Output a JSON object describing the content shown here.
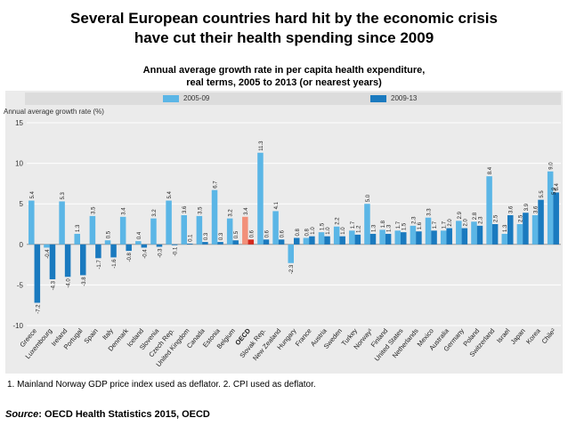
{
  "page": {
    "title_line1": "Several European countries hard hit by the economic crisis",
    "title_line2": "have cut their health spending since 2009",
    "footnote": "1. Mainland Norway GDP price index used as deflator. 2. CPI used as deflator.",
    "source_label": "Source",
    "source_text": ": OECD Health Statistics 2015, OECD"
  },
  "chart_data": {
    "type": "bar",
    "title": "Annual average growth rate in per capita health expenditure,",
    "subtitle": "real terms, 2005 to 2013 (or nearest years)",
    "ylabel": "Annual average growth rate (%)",
    "ylim": [
      -10,
      15
    ],
    "yticks": [
      -10,
      -5,
      0,
      5,
      10,
      15
    ],
    "grid": true,
    "legend_position": "top",
    "categories": [
      "Greece",
      "Luxembourg",
      "Ireland",
      "Portugal",
      "Spain",
      "Italy",
      "Denmark",
      "Iceland",
      "Slovenia",
      "Czech Rep.",
      "United Kingdom",
      "Canada",
      "Estonia",
      "Belgium",
      "OECD",
      "Slovak Rep.",
      "New Zealand",
      "Hungary",
      "France",
      "Austria",
      "Sweden",
      "Turkey",
      "Norway¹",
      "Finland",
      "United States",
      "Netherlands",
      "Mexico",
      "Australia",
      "Germany",
      "Poland",
      "Switzerland",
      "Israel",
      "Japan",
      "Korea",
      "Chile²"
    ],
    "series": [
      {
        "name": "2005-09",
        "color": "#5bb6e6",
        "values": [
          5.4,
          -0.4,
          5.3,
          1.3,
          3.5,
          0.5,
          3.4,
          0.4,
          3.2,
          5.4,
          3.6,
          3.5,
          6.7,
          3.2,
          3.4,
          11.3,
          4.1,
          -2.3,
          0.8,
          1.5,
          2.2,
          1.7,
          5.0,
          1.8,
          1.7,
          2.3,
          3.3,
          1.7,
          2.9,
          2.8,
          8.4,
          1.3,
          2.5,
          3.6,
          9.0
        ]
      },
      {
        "name": "2009-13",
        "color": "#1a7abf",
        "values": [
          -7.2,
          -4.3,
          -4.0,
          -3.8,
          -1.7,
          -1.6,
          -0.8,
          -0.4,
          -0.3,
          -0.1,
          0.1,
          0.3,
          0.3,
          0.5,
          0.6,
          0.6,
          0.6,
          0.8,
          1.0,
          1.0,
          1.0,
          1.2,
          1.3,
          1.3,
          1.5,
          1.6,
          1.7,
          2.0,
          2.0,
          2.3,
          2.5,
          3.6,
          3.9,
          5.5,
          6.4
        ]
      }
    ],
    "highlight": {
      "category": "OECD",
      "color_2005": "#f2907a",
      "color_2009": "#d42a1e"
    },
    "extra_labels": {
      "Chile²": "5.9"
    }
  }
}
